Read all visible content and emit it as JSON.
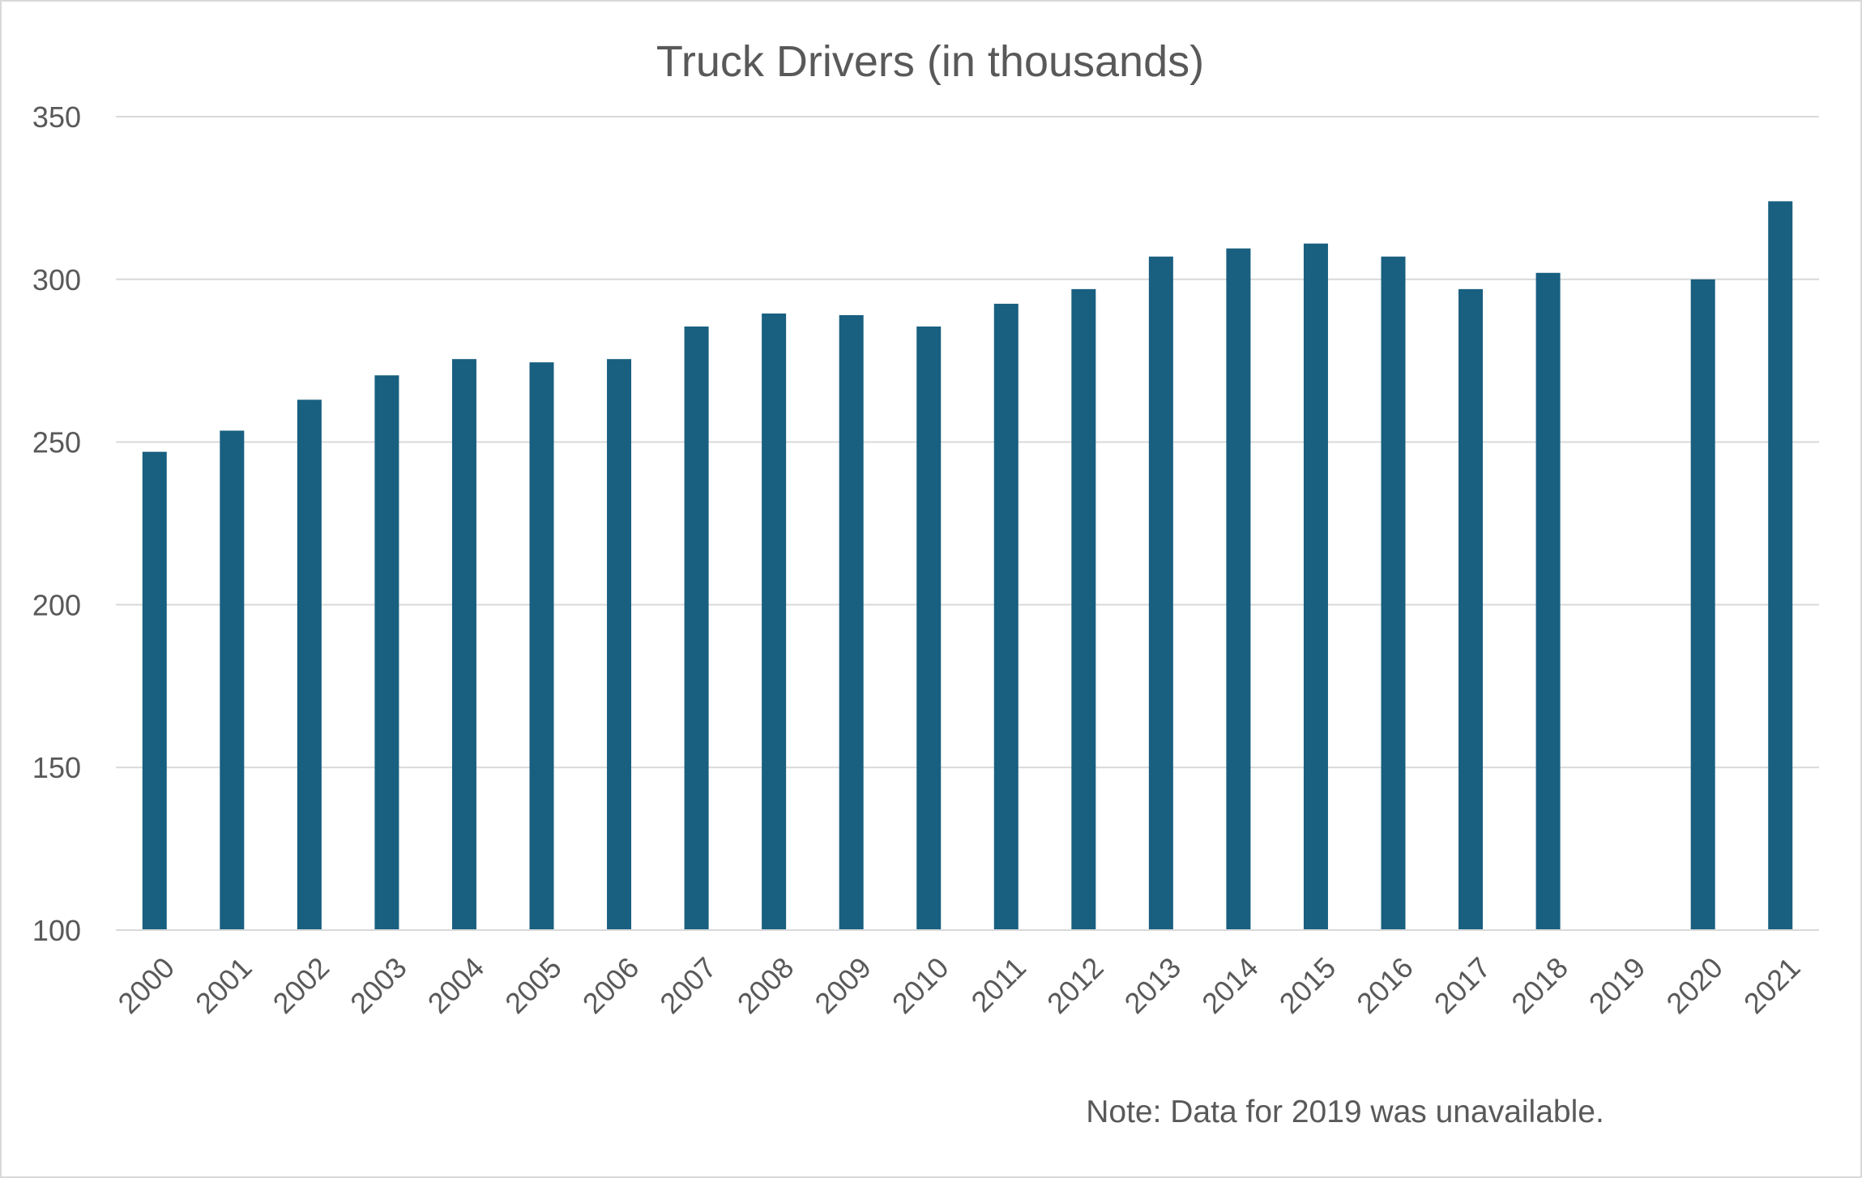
{
  "chart_data": {
    "type": "bar",
    "title": "Truck Drivers (in thousands)",
    "xlabel": "",
    "ylabel": "",
    "categories": [
      "2000",
      "2001",
      "2002",
      "2003",
      "2004",
      "2005",
      "2006",
      "2007",
      "2008",
      "2009",
      "2010",
      "2011",
      "2012",
      "2013",
      "2014",
      "2015",
      "2016",
      "2017",
      "2018",
      "2019",
      "2020",
      "2021"
    ],
    "values": [
      247,
      253.5,
      263,
      270.5,
      275.5,
      274.5,
      275.5,
      285.5,
      289.5,
      289,
      285.5,
      292.5,
      297,
      307,
      309.5,
      311,
      307,
      297,
      302,
      null,
      300,
      324
    ],
    "ylim": [
      100,
      350
    ],
    "yticks": [
      100,
      150,
      200,
      250,
      300,
      350
    ],
    "grid": true,
    "legend": "none",
    "bar_color": "#185f80",
    "note": "Note: Data for 2019 was unavailable."
  }
}
